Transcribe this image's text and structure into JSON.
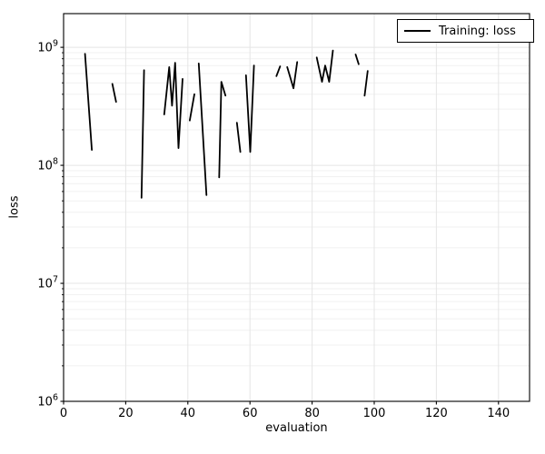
{
  "chart_data": {
    "type": "line",
    "title": "",
    "xlabel": "evaluation",
    "ylabel": "loss",
    "yscale": "log",
    "xlim": [
      0,
      150
    ],
    "ylim": [
      1000000.0,
      1930000000.0
    ],
    "x_ticks": [
      0,
      20,
      40,
      60,
      80,
      100,
      120,
      140
    ],
    "y_tick_exponents": [
      6,
      7,
      8,
      9
    ],
    "grid": {
      "vertical_major": true,
      "horizontal_major": true,
      "horizontal_minor": true
    },
    "legend": {
      "label": "Training: loss",
      "position": "upper right"
    },
    "colors": {
      "line": "#000000",
      "grid_major": "#e5e5e5",
      "grid_minor": "#f1f1f1",
      "spine": "#000000",
      "text": "#000000"
    },
    "series": [
      {
        "name": "Training: loss",
        "color": "#000000",
        "segments": [
          [
            [
              6.9,
              880000000.0
            ],
            [
              9.1,
              135000000.0
            ]
          ],
          [
            [
              15.7,
              490000000.0
            ],
            [
              16.9,
              345000000.0
            ]
          ],
          [
            [
              25.1,
              53000000.0
            ],
            [
              25.9,
              640000000.0
            ]
          ],
          [
            [
              32.4,
              270000000.0
            ],
            [
              34.0,
              680000000.0
            ],
            [
              34.9,
              320000000.0
            ],
            [
              35.9,
              740000000.0
            ],
            [
              37.0,
              140000000.0
            ],
            [
              38.3,
              540000000.0
            ]
          ],
          [
            [
              40.6,
              240000000.0
            ],
            [
              42.1,
              400000000.0
            ]
          ],
          [
            [
              43.5,
              730000000.0
            ],
            [
              46.0,
              56000000.0
            ]
          ],
          [
            [
              50.1,
              79000000.0
            ],
            [
              50.8,
              510000000.0
            ],
            [
              52.1,
              390000000.0
            ]
          ],
          [
            [
              55.8,
              230000000.0
            ],
            [
              56.9,
              130000000.0
            ]
          ],
          [
            [
              58.7,
              580000000.0
            ],
            [
              60.1,
              130000000.0
            ],
            [
              61.3,
              700000000.0
            ]
          ],
          [
            [
              68.5,
              570000000.0
            ],
            [
              69.7,
              690000000.0
            ]
          ],
          [
            [
              72.0,
              680000000.0
            ],
            [
              74.0,
              450000000.0
            ],
            [
              75.2,
              750000000.0
            ]
          ],
          [
            [
              81.5,
              820000000.0
            ],
            [
              83.2,
              510000000.0
            ],
            [
              84.2,
              700000000.0
            ],
            [
              85.5,
              510000000.0
            ],
            [
              86.7,
              940000000.0
            ]
          ],
          [
            [
              94.0,
              870000000.0
            ],
            [
              95.0,
              720000000.0
            ]
          ],
          [
            [
              96.9,
              390000000.0
            ],
            [
              97.9,
              630000000.0
            ]
          ]
        ]
      }
    ]
  }
}
